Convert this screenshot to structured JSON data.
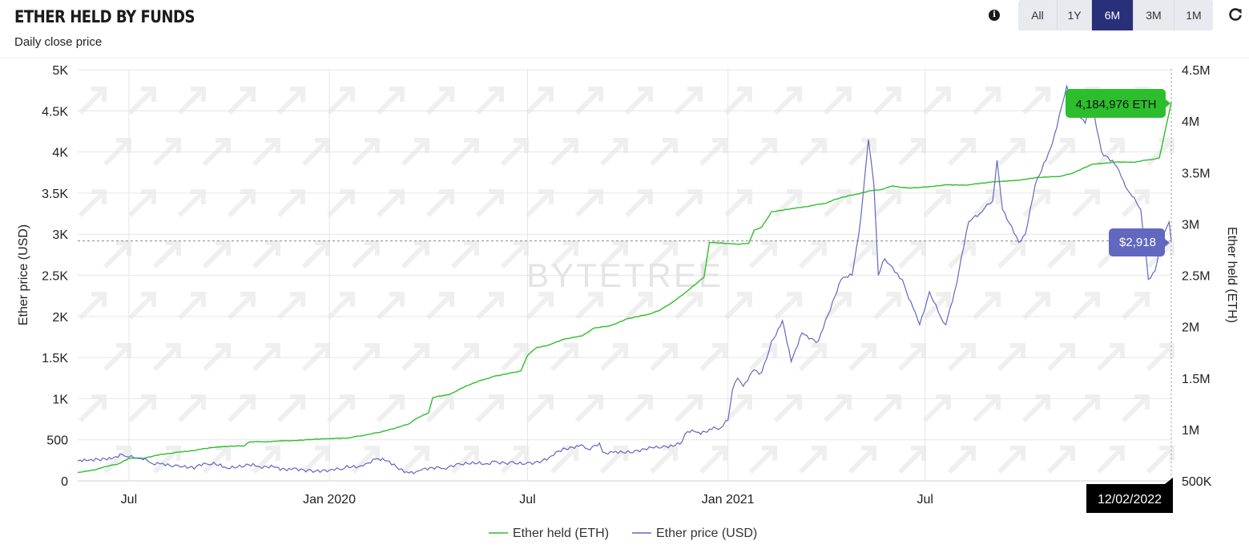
{
  "header": {
    "title": "ETHER HELD BY FUNDS",
    "subtitle": "Daily close price",
    "range_buttons": [
      "All",
      "1Y",
      "6M",
      "3M",
      "1M"
    ],
    "active_range": "6M",
    "info_icon": "info-icon",
    "refresh_icon": "refresh-icon"
  },
  "watermark": "BYTETREE",
  "tooltip": {
    "held_label": "4,184,976 ETH",
    "price_label": "$2,918",
    "date_label": "12/02/2022"
  },
  "colors": {
    "held": "#2dbe2d",
    "price": "#6268bf",
    "active_button": "#29307a",
    "date_box": "#000000"
  },
  "legend": {
    "held": "Ether held (ETH)",
    "price": "Ether price (USD)"
  },
  "chart_data": {
    "type": "line",
    "x_range": [
      "2019-05-15",
      "2022-02-12"
    ],
    "x_ticks": [
      {
        "date": "2019-07-01",
        "label": "Jul"
      },
      {
        "date": "2020-01-01",
        "label": "Jan 2020"
      },
      {
        "date": "2020-07-01",
        "label": "Jul"
      },
      {
        "date": "2021-01-01",
        "label": "Jan 2021"
      },
      {
        "date": "2021-07-01",
        "label": "Jul"
      }
    ],
    "y_left": {
      "label": "Ether price (USD)",
      "range": [
        0,
        5000
      ],
      "ticks": [
        0,
        500,
        1000,
        1500,
        2000,
        2500,
        3000,
        3500,
        4000,
        4500,
        5000
      ],
      "tick_labels": [
        "0",
        "500",
        "1K",
        "1.5K",
        "2K",
        "2.5K",
        "3K",
        "3.5K",
        "4K",
        "4.5K",
        "5K"
      ]
    },
    "y_right": {
      "label": "Ether held (ETH)",
      "range": [
        500000,
        4500000
      ],
      "ticks": [
        500000,
        1000000,
        1500000,
        2000000,
        2500000,
        3000000,
        3500000,
        4000000,
        4500000
      ],
      "tick_labels": [
        "500K",
        "1M",
        "1.5M",
        "2M",
        "2.5M",
        "3M",
        "3.5M",
        "4M",
        "4.5M"
      ]
    },
    "grid": true,
    "legend_position": "bottom",
    "crosshair_price": 2918,
    "series": [
      {
        "name": "Ether held (ETH)",
        "axis": "right",
        "points": [
          [
            "2019-05-15",
            580000
          ],
          [
            "2019-06-01",
            610000
          ],
          [
            "2019-06-10",
            640000
          ],
          [
            "2019-06-20",
            660000
          ],
          [
            "2019-07-01",
            720000
          ],
          [
            "2019-07-15",
            720000
          ],
          [
            "2019-08-01",
            760000
          ],
          [
            "2019-08-15",
            780000
          ],
          [
            "2019-09-01",
            800000
          ],
          [
            "2019-09-20",
            830000
          ],
          [
            "2019-10-15",
            840000
          ],
          [
            "2019-10-20",
            880000
          ],
          [
            "2019-11-01",
            880000
          ],
          [
            "2019-11-20",
            890000
          ],
          [
            "2019-12-10",
            900000
          ],
          [
            "2020-01-01",
            910000
          ],
          [
            "2020-01-20",
            920000
          ],
          [
            "2020-02-01",
            940000
          ],
          [
            "2020-02-15",
            970000
          ],
          [
            "2020-03-01",
            1010000
          ],
          [
            "2020-03-15",
            1060000
          ],
          [
            "2020-03-20",
            1100000
          ],
          [
            "2020-04-01",
            1160000
          ],
          [
            "2020-04-05",
            1310000
          ],
          [
            "2020-04-20",
            1340000
          ],
          [
            "2020-05-01",
            1400000
          ],
          [
            "2020-05-20",
            1480000
          ],
          [
            "2020-06-01",
            1520000
          ],
          [
            "2020-06-15",
            1550000
          ],
          [
            "2020-06-25",
            1570000
          ],
          [
            "2020-07-01",
            1720000
          ],
          [
            "2020-07-05",
            1760000
          ],
          [
            "2020-07-10",
            1800000
          ],
          [
            "2020-07-20",
            1820000
          ],
          [
            "2020-08-01",
            1870000
          ],
          [
            "2020-08-10",
            1890000
          ],
          [
            "2020-08-20",
            1910000
          ],
          [
            "2020-09-01",
            1990000
          ],
          [
            "2020-09-15",
            2010000
          ],
          [
            "2020-10-01",
            2080000
          ],
          [
            "2020-10-20",
            2120000
          ],
          [
            "2020-11-01",
            2170000
          ],
          [
            "2020-11-10",
            2230000
          ],
          [
            "2020-11-25",
            2350000
          ],
          [
            "2020-12-10",
            2480000
          ],
          [
            "2020-12-15",
            2820000
          ],
          [
            "2021-01-01",
            2810000
          ],
          [
            "2021-01-10",
            2800000
          ],
          [
            "2021-01-20",
            2810000
          ],
          [
            "2021-01-25",
            2940000
          ],
          [
            "2021-02-01",
            2970000
          ],
          [
            "2021-02-10",
            3120000
          ],
          [
            "2021-03-01",
            3150000
          ],
          [
            "2021-03-20",
            3180000
          ],
          [
            "2021-04-01",
            3200000
          ],
          [
            "2021-04-10",
            3240000
          ],
          [
            "2021-04-25",
            3280000
          ],
          [
            "2021-05-10",
            3320000
          ],
          [
            "2021-05-20",
            3330000
          ],
          [
            "2021-06-01",
            3370000
          ],
          [
            "2021-06-15",
            3350000
          ],
          [
            "2021-07-01",
            3360000
          ],
          [
            "2021-07-20",
            3380000
          ],
          [
            "2021-08-10",
            3380000
          ],
          [
            "2021-09-01",
            3410000
          ],
          [
            "2021-09-20",
            3420000
          ],
          [
            "2021-10-10",
            3450000
          ],
          [
            "2021-11-01",
            3460000
          ],
          [
            "2021-11-15",
            3500000
          ],
          [
            "2021-12-01",
            3580000
          ],
          [
            "2021-12-20",
            3600000
          ],
          [
            "2022-01-10",
            3600000
          ],
          [
            "2022-01-20",
            3620000
          ],
          [
            "2022-02-01",
            3640000
          ],
          [
            "2022-02-12",
            4184976
          ]
        ]
      },
      {
        "name": "Ether price (USD)",
        "axis": "left",
        "points": [
          [
            "2019-05-15",
            240
          ],
          [
            "2019-05-25",
            250
          ],
          [
            "2019-06-05",
            245
          ],
          [
            "2019-06-15",
            265
          ],
          [
            "2019-06-25",
            320
          ],
          [
            "2019-07-01",
            290
          ],
          [
            "2019-07-10",
            270
          ],
          [
            "2019-07-20",
            225
          ],
          [
            "2019-08-01",
            215
          ],
          [
            "2019-08-15",
            190
          ],
          [
            "2019-09-01",
            175
          ],
          [
            "2019-09-15",
            200
          ],
          [
            "2019-09-25",
            165
          ],
          [
            "2019-10-15",
            175
          ],
          [
            "2019-10-25",
            180
          ],
          [
            "2019-11-15",
            165
          ],
          [
            "2019-11-25",
            150
          ],
          [
            "2019-12-15",
            135
          ],
          [
            "2020-01-01",
            130
          ],
          [
            "2020-01-15",
            155
          ],
          [
            "2020-02-01",
            180
          ],
          [
            "2020-02-15",
            270
          ],
          [
            "2020-02-25",
            240
          ],
          [
            "2020-03-12",
            110
          ],
          [
            "2020-03-25",
            130
          ],
          [
            "2020-04-15",
            150
          ],
          [
            "2020-05-01",
            200
          ],
          [
            "2020-05-20",
            200
          ],
          [
            "2020-06-01",
            240
          ],
          [
            "2020-06-15",
            230
          ],
          [
            "2020-07-01",
            225
          ],
          [
            "2020-07-10",
            240
          ],
          [
            "2020-07-25",
            310
          ],
          [
            "2020-08-05",
            390
          ],
          [
            "2020-08-15",
            430
          ],
          [
            "2020-08-25",
            390
          ],
          [
            "2020-09-05",
            460
          ],
          [
            "2020-09-08",
            350
          ],
          [
            "2020-09-20",
            360
          ],
          [
            "2020-10-10",
            370
          ],
          [
            "2020-10-25",
            400
          ],
          [
            "2020-11-05",
            420
          ],
          [
            "2020-11-20",
            480
          ],
          [
            "2020-11-25",
            600
          ],
          [
            "2020-12-05",
            590
          ],
          [
            "2020-12-15",
            630
          ],
          [
            "2020-12-25",
            640
          ],
          [
            "2021-01-01",
            740
          ],
          [
            "2021-01-05",
            1100
          ],
          [
            "2021-01-10",
            1250
          ],
          [
            "2021-01-15",
            1150
          ],
          [
            "2021-01-25",
            1350
          ],
          [
            "2021-02-01",
            1320
          ],
          [
            "2021-02-10",
            1700
          ],
          [
            "2021-02-20",
            1950
          ],
          [
            "2021-02-28",
            1450
          ],
          [
            "2021-03-10",
            1800
          ],
          [
            "2021-03-25",
            1700
          ],
          [
            "2021-04-05",
            2080
          ],
          [
            "2021-04-15",
            2450
          ],
          [
            "2021-04-25",
            2500
          ],
          [
            "2021-05-03",
            3200
          ],
          [
            "2021-05-10",
            4150
          ],
          [
            "2021-05-15",
            3600
          ],
          [
            "2021-05-19",
            2500
          ],
          [
            "2021-05-25",
            2700
          ],
          [
            "2021-06-01",
            2600
          ],
          [
            "2021-06-10",
            2450
          ],
          [
            "2021-06-20",
            2100
          ],
          [
            "2021-06-26",
            1900
          ],
          [
            "2021-07-05",
            2300
          ],
          [
            "2021-07-15",
            2000
          ],
          [
            "2021-07-20",
            1900
          ],
          [
            "2021-07-30",
            2400
          ],
          [
            "2021-08-10",
            3150
          ],
          [
            "2021-08-20",
            3250
          ],
          [
            "2021-09-01",
            3400
          ],
          [
            "2021-09-05",
            3900
          ],
          [
            "2021-09-10",
            3300
          ],
          [
            "2021-09-25",
            2900
          ],
          [
            "2021-10-01",
            3000
          ],
          [
            "2021-10-10",
            3600
          ],
          [
            "2021-10-20",
            3900
          ],
          [
            "2021-10-30",
            4300
          ],
          [
            "2021-11-08",
            4800
          ],
          [
            "2021-11-15",
            4500
          ],
          [
            "2021-11-25",
            4350
          ],
          [
            "2021-12-01",
            4600
          ],
          [
            "2021-12-10",
            4000
          ],
          [
            "2021-12-20",
            3900
          ],
          [
            "2021-12-28",
            3700
          ],
          [
            "2022-01-05",
            3500
          ],
          [
            "2022-01-15",
            3300
          ],
          [
            "2022-01-22",
            2450
          ],
          [
            "2022-01-28",
            2550
          ],
          [
            "2022-02-05",
            3000
          ],
          [
            "2022-02-10",
            3150
          ],
          [
            "2022-02-12",
            2918
          ]
        ]
      }
    ]
  }
}
